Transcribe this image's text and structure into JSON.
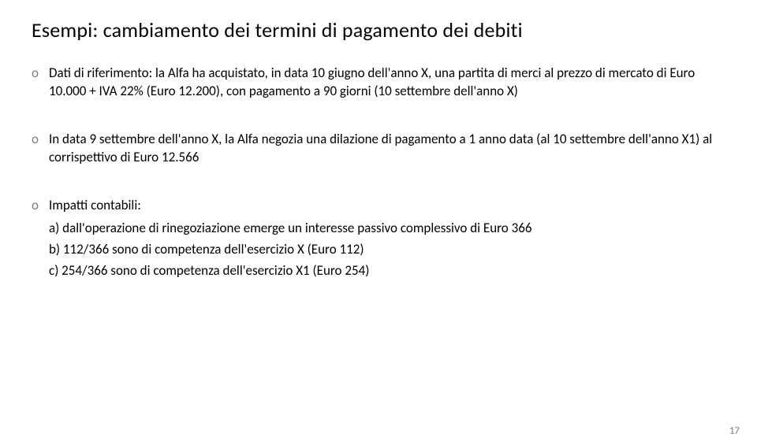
{
  "title": "Esempi: cambiamento dei termini di pagamento dei debiti",
  "bullet_marker": "o",
  "bullets": [
    {
      "text": "Dati di riferimento: la Alfa ha acquistato, in data 10 giugno dell'anno X, una partita di merci al prezzo di mercato di Euro 10.000 + IVA 22% (Euro 12.200), con pagamento a 90 giorni (10 settembre dell'anno X)"
    },
    {
      "text": "In data 9 settembre dell'anno X, la Alfa negozia una dilazione di pagamento a 1 anno data (al 10 settembre dell'anno X1) al corrispettivo di Euro 12.566"
    },
    {
      "text": "Impatti contabili:",
      "subs": [
        "a) dall'operazione di rinegoziazione emerge un interesse passivo complessivo di Euro 366",
        "b) 112/366 sono di competenza dell'esercizio X (Euro 112)",
        "c) 254/366 sono di competenza dell'esercizio X1 (Euro 254)"
      ]
    }
  ],
  "page_number": "17"
}
